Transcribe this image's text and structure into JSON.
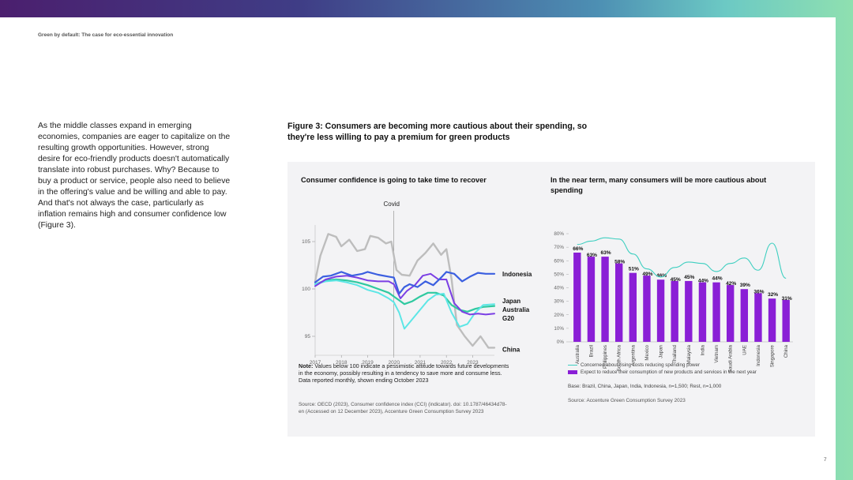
{
  "header": {
    "title": "Green by default: The case for eco-essential innovation"
  },
  "body_text": "As the middle classes expand in emerging economies, companies are eager to capitalize on the resulting growth opportunities. However, strong desire for eco-friendly products doesn't automatically translate into robust purchases. Why? Because to buy a product or service, people also need to believe in the offering's value and be willing and able to pay. And that's not always the case, particularly as inflation remains high and consumer confidence low (Figure 3).",
  "figure": {
    "title": "Figure 3: Consumers are becoming more cautious about their spending, so they're less willing to pay a premium for green products"
  },
  "left_chart": {
    "title": "Consumer confidence is going to take time to recover",
    "note_label": "Note:",
    "note_text": "Values below 100 indicate a pessimistic attitude towards future developments in the economy, possibly resulting in a tendency to save more and consume less.",
    "note_line2": "Data reported monthly, shown ending October 2023",
    "source": "Source: OECD (2023), Consumer confidence index (CCI) (indicator). doi: 10.1787/46434d78-en (Accessed on 12 December 2023), Accenture Green Consumption Survey 2023"
  },
  "right_chart": {
    "title": "In the near term, many consumers will be more cautious about spending",
    "legend_line": "Concerned about rising costs reducing spending power",
    "legend_bar": "Expect to reduce their consumption of new products and services in the next year",
    "base": "Base: Brazil, China, Japan, India, Indonesia, n=1,500; Rest, n=1,000",
    "source": "Source: Accenture Green Consumption Survey 2023"
  },
  "page_number": "7",
  "colors": {
    "bar": "#8a1fd6",
    "line": "#3ecfc0",
    "indonesia": "#3b5fe0",
    "japan": "#5de6e6",
    "australia": "#7b3fe4",
    "g20": "#2fc9a0",
    "china": "#bdbdbd"
  },
  "chart_data": [
    {
      "type": "line",
      "title": "Consumer confidence is going to take time to recover",
      "x_ticks": [
        "2017",
        "2018",
        "2019",
        "2020",
        "2021",
        "2022",
        "2023"
      ],
      "y_ticks": [
        95,
        100,
        105
      ],
      "ylim": [
        93,
        108
      ],
      "xlim": [
        2017,
        2023.83
      ],
      "annotation": "Covid",
      "annotation_x": 2020,
      "series": [
        {
          "name": "Indonesia",
          "color": "#3b5fe0",
          "x": [
            2017,
            2017.3,
            2017.6,
            2018,
            2018.4,
            2018.8,
            2019,
            2019.4,
            2019.8,
            2020,
            2020.2,
            2020.4,
            2020.6,
            2020.9,
            2021.2,
            2021.5,
            2021.8,
            2022,
            2022.3,
            2022.6,
            2022.9,
            2023.2,
            2023.5,
            2023.83
          ],
          "values": [
            100.7,
            101.3,
            101.4,
            101.8,
            101.4,
            101.6,
            101.8,
            101.5,
            101.3,
            101.2,
            99.5,
            100.2,
            100.5,
            100.2,
            100.8,
            100.4,
            101.2,
            101.8,
            101.6,
            100.8,
            101.3,
            101.7,
            101.6,
            101.6
          ]
        },
        {
          "name": "Japan",
          "color": "#5de6e6",
          "x": [
            2017,
            2017.4,
            2017.8,
            2018.2,
            2018.6,
            2019,
            2019.4,
            2019.8,
            2020,
            2020.2,
            2020.4,
            2020.7,
            2021,
            2021.3,
            2021.6,
            2021.9,
            2022.2,
            2022.5,
            2022.8,
            2023.1,
            2023.4,
            2023.83
          ],
          "values": [
            100.5,
            100.8,
            100.9,
            100.7,
            100.4,
            99.9,
            99.6,
            99.0,
            98.6,
            97.5,
            95.8,
            96.8,
            97.8,
            98.8,
            99.4,
            99.5,
            97.5,
            96.0,
            96.3,
            97.5,
            98.3,
            98.4
          ]
        },
        {
          "name": "Australia",
          "color": "#7b3fe4",
          "x": [
            2017,
            2017.4,
            2017.8,
            2018.2,
            2018.6,
            2019,
            2019.4,
            2019.8,
            2020,
            2020.25,
            2020.5,
            2020.8,
            2021.1,
            2021.4,
            2021.7,
            2022,
            2022.3,
            2022.6,
            2022.9,
            2023.2,
            2023.5,
            2023.83
          ],
          "values": [
            100.3,
            101.0,
            101.3,
            101.4,
            101.2,
            100.9,
            100.8,
            100.8,
            100.5,
            99.0,
            99.8,
            100.4,
            101.4,
            101.6,
            101.0,
            101.0,
            98.5,
            97.6,
            97.3,
            97.4,
            97.3,
            97.4
          ]
        },
        {
          "name": "G20",
          "color": "#2fc9a0",
          "x": [
            2017,
            2017.4,
            2017.8,
            2018.2,
            2018.6,
            2019,
            2019.4,
            2019.8,
            2020,
            2020.2,
            2020.4,
            2020.7,
            2021,
            2021.3,
            2021.6,
            2021.9,
            2022.2,
            2022.5,
            2022.8,
            2023.1,
            2023.4,
            2023.83
          ],
          "values": [
            100.5,
            100.9,
            101.0,
            100.9,
            100.7,
            100.4,
            100.0,
            99.6,
            99.2,
            98.8,
            98.4,
            98.7,
            99.2,
            99.6,
            99.6,
            99.3,
            98.3,
            97.8,
            97.6,
            97.9,
            98.1,
            98.2
          ]
        },
        {
          "name": "China",
          "color": "#bdbdbd",
          "x": [
            2017,
            2017.2,
            2017.5,
            2017.8,
            2018,
            2018.3,
            2018.6,
            2018.9,
            2019.1,
            2019.4,
            2019.7,
            2019.9,
            2020.1,
            2020.3,
            2020.6,
            2020.9,
            2021.2,
            2021.5,
            2021.8,
            2022,
            2022.2,
            2022.4,
            2022.7,
            2023,
            2023.3,
            2023.6,
            2023.83
          ],
          "values": [
            100.8,
            103.5,
            105.8,
            105.5,
            104.5,
            105.2,
            104.0,
            104.2,
            105.6,
            105.4,
            104.8,
            105.0,
            102.0,
            101.5,
            101.4,
            103.0,
            103.8,
            104.8,
            103.6,
            104.2,
            101.0,
            96.2,
            95.0,
            94.0,
            95.0,
            93.8,
            93.8
          ]
        }
      ]
    },
    {
      "type": "bar",
      "title": "In the near term, many consumers will be more cautious about spending",
      "categories": [
        "Australia",
        "Brazil",
        "Philippines",
        "South Africa",
        "Argentina",
        "Mexico",
        "Japan",
        "Thailand",
        "Malaysia",
        "India",
        "Vietnam",
        "Saudi Arabia",
        "UAE",
        "Indonesia",
        "Singapore",
        "China"
      ],
      "y_ticks": [
        "0%",
        "10%",
        "20%",
        "30%",
        "40%",
        "50%",
        "60%",
        "70%",
        "80%"
      ],
      "ylim": [
        0,
        80
      ],
      "series": [
        {
          "name": "Expect to reduce their consumption of new products and services in the next year",
          "kind": "bar",
          "values": [
            66,
            63,
            63,
            58,
            51,
            49,
            46,
            45,
            45,
            44,
            44,
            42,
            39,
            36,
            32,
            31
          ],
          "labels": [
            "66%",
            "63%",
            "63%",
            "58%",
            "51%",
            "49%",
            "46%",
            "45%",
            "45%",
            "44%",
            "44%",
            "42%",
            "39%",
            "36%",
            "32%",
            "31%"
          ]
        },
        {
          "name": "Concerned about rising costs reducing spending power",
          "kind": "line",
          "values": [
            72,
            74.5,
            77,
            76,
            65,
            54,
            48,
            55,
            59,
            58,
            52,
            58,
            62,
            53,
            73,
            47
          ]
        }
      ]
    }
  ]
}
